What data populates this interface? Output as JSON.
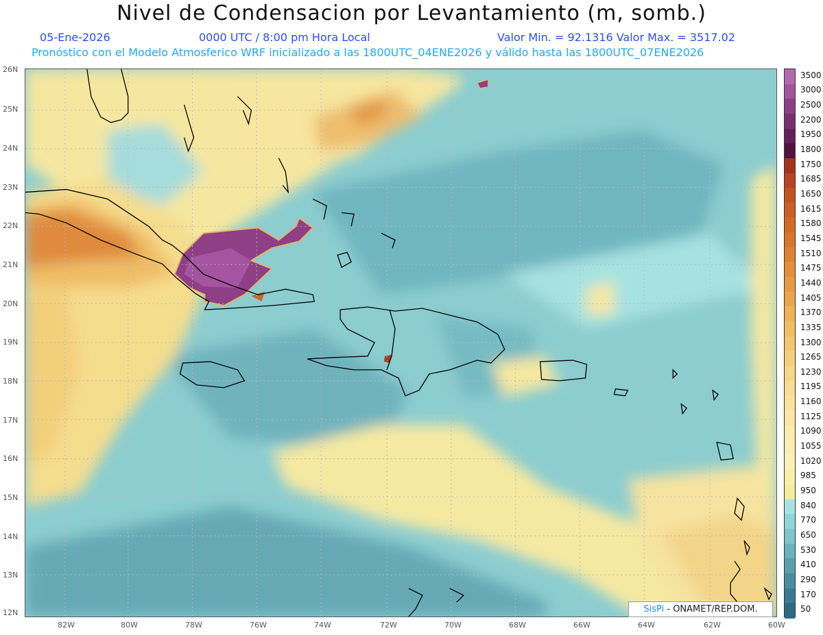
{
  "header": {
    "title": "Nivel de Condensacion por Levantamiento (m, somb.)",
    "date": "05-Ene-2026",
    "time": "0000 UTC / 8:00 pm Hora Local",
    "minmax": "Valor Min. = 92.1316   Valor Max. = 3517.02",
    "forecast_line": "Pronóstico con el Modelo Atmosferico WRF inicializado a las 1800UTC_04ENE2026 y válido hasta las  1800UTC_07ENE2026"
  },
  "y_axis": [
    "26N",
    "25N",
    "24N",
    "23N",
    "22N",
    "21N",
    "20N",
    "19N",
    "18N",
    "17N",
    "16N",
    "15N",
    "14N",
    "13N",
    "12N"
  ],
  "x_axis": [
    "82W",
    "80W",
    "78W",
    "76W",
    "74W",
    "72W",
    "70W",
    "68W",
    "66W",
    "64W",
    "62W",
    "60W"
  ],
  "legend": {
    "levels": [
      "3500",
      "3000",
      "2500",
      "2200",
      "1950",
      "1800",
      "1750",
      "1685",
      "1650",
      "1615",
      "1580",
      "1545",
      "1510",
      "1475",
      "1440",
      "1405",
      "1370",
      "1335",
      "1300",
      "1265",
      "1230",
      "1195",
      "1160",
      "1125",
      "1090",
      "1055",
      "1020",
      "985",
      "950",
      "840",
      "770",
      "650",
      "530",
      "410",
      "290",
      "170",
      "50"
    ],
    "colors": [
      "#b468ae",
      "#a4569c",
      "#8e3f85",
      "#7a2e70",
      "#661e5c",
      "#51123f",
      "#a3331c",
      "#b94322",
      "#c5531e",
      "#cd5f22",
      "#d36a26",
      "#d9762c",
      "#df8232",
      "#e48d3a",
      "#e89a42",
      "#ec a64a",
      "#efb256",
      "#f2bd62",
      "#f4c66e",
      "#f6cf7a",
      "#f7d686",
      "#f8dd92",
      "#f9e29c",
      "#fae7a6",
      "#faebae",
      "#fbeeb4",
      "#fbf0b8",
      "#f9f0a8",
      "#f7ec9c",
      "#a6e4e4",
      "#90d6d8",
      "#7ec6cc",
      "#6ab2bd",
      "#5a9fae",
      "#4a8da0",
      "#3a7b92",
      "#2a6a84"
    ]
  },
  "credit": {
    "logo": "SisPi",
    "logo_pi": "π",
    "text": " - ONAMET/REP.DOM."
  },
  "colors": {
    "sea_base": "#8fd0d2",
    "bands": "#f9eca4",
    "orange": "#e59a3e",
    "purple": "#8a3c82"
  }
}
